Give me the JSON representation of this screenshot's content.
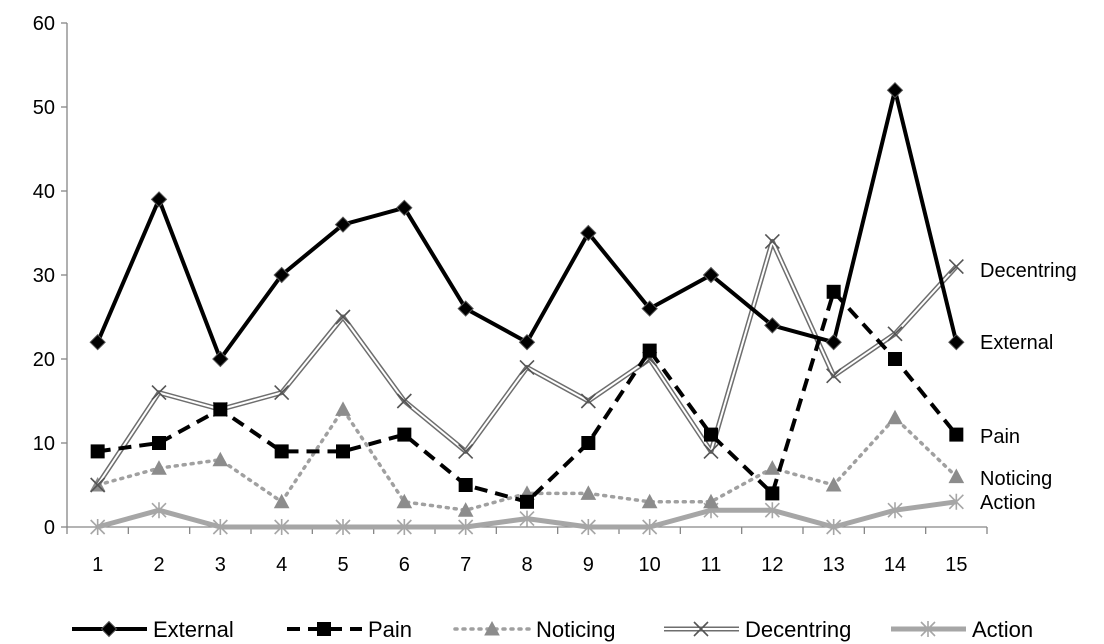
{
  "chart_data": {
    "type": "line",
    "categories": [
      "1",
      "2",
      "3",
      "4",
      "5",
      "6",
      "7",
      "8",
      "9",
      "10",
      "11",
      "12",
      "13",
      "14",
      "15"
    ],
    "ylim": [
      0,
      60
    ],
    "yticks": [
      0,
      10,
      20,
      30,
      40,
      50,
      60
    ],
    "grid": false,
    "legend_position": "bottom",
    "series": [
      {
        "name": "External",
        "style": "solid-black-diamond",
        "color": "#000000",
        "values": [
          22,
          39,
          20,
          30,
          36,
          38,
          26,
          22,
          35,
          26,
          30,
          24,
          22,
          52,
          22
        ]
      },
      {
        "name": "Pain",
        "style": "dashed-black-square",
        "color": "#000000",
        "values": [
          9,
          10,
          14,
          9,
          9,
          11,
          5,
          3,
          10,
          21,
          11,
          4,
          28,
          20,
          11
        ]
      },
      {
        "name": "Noticing",
        "style": "dotted-gray-triangle",
        "color": "#8c8c8c",
        "values": [
          5,
          7,
          8,
          3,
          14,
          3,
          2,
          4,
          4,
          3,
          3,
          7,
          5,
          13,
          6
        ]
      },
      {
        "name": "Decentring",
        "style": "double-gray-x",
        "color": "#6e6e6e",
        "values": [
          5,
          16,
          14,
          16,
          25,
          15,
          9,
          19,
          15,
          20,
          9,
          34,
          18,
          23,
          31
        ]
      },
      {
        "name": "Action",
        "style": "thick-lightgray-star",
        "color": "#a6a6a6",
        "values": [
          0,
          2,
          0,
          0,
          0,
          0,
          0,
          1,
          0,
          0,
          2,
          2,
          0,
          2,
          3
        ]
      }
    ],
    "end_labels": [
      "Decentring",
      "External",
      "Pain",
      "Noticing",
      "Action"
    ]
  }
}
